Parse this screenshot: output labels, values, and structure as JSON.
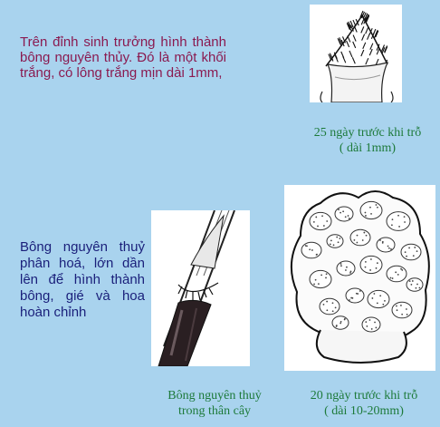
{
  "intro": {
    "text": "Trên đỉnh sinh trưởng hình thành bông nguyên thủy. Đó là một khối trắng, có lông trắng mịn dài 1mm,"
  },
  "description": {
    "text": "Bông nguyên thuỷ phân hoá, lớn dần lên để hình thành bông, gié và hoa hoàn chỉnh"
  },
  "captions": {
    "top_right": {
      "line1": "25 ngày trước khi trỗ",
      "line2": "( dài 1mm)"
    },
    "bottom_middle": {
      "line1": "Bông nguyên thuỷ",
      "line2": "trong thân cây"
    },
    "bottom_right": {
      "line1": "20 ngày trước khi trỗ",
      "line2": "( dài 10-20mm)"
    }
  },
  "illustrations": [
    {
      "name": "primordium-hairy-tip-drawing"
    },
    {
      "name": "primordium-inside-stem-drawing"
    },
    {
      "name": "panicle-primordium-enlarged-drawing"
    }
  ],
  "colors": {
    "background": "#a9d3ee",
    "intro_text": "#8a1a50",
    "description_text": "#1a1f7a",
    "caption_text": "#1d7a3a"
  }
}
